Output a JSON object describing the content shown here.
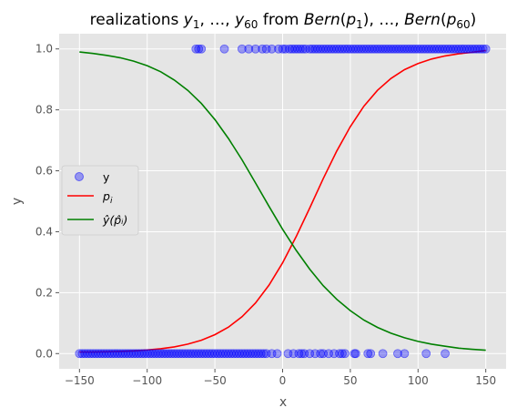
{
  "chart_data": {
    "type": "scatter",
    "title_parts": {
      "prefix": "realizations ",
      "y1_base": "y",
      "y1_sub": "1",
      "sep1": ", …, ",
      "y60_base": "y",
      "y60_sub": "60",
      "middle": " from ",
      "b1_base": "Bern",
      "b1_arg": "p",
      "b1_sub": "1",
      "sep2": ", …, ",
      "b60_base": "Bern",
      "b60_arg": "p",
      "b60_sub": "60"
    },
    "xlabel": "x",
    "ylabel": "y",
    "xlim": [
      -165,
      165
    ],
    "ylim": [
      -0.05,
      1.05
    ],
    "xticks": [
      -150,
      -100,
      -50,
      0,
      50,
      100,
      150
    ],
    "xtick_labels": [
      "−150",
      "−100",
      "−50",
      "0",
      "50",
      "100",
      "150"
    ],
    "yticks": [
      0.0,
      0.2,
      0.4,
      0.6,
      0.8,
      1.0
    ],
    "ytick_labels": [
      "0.0",
      "0.2",
      "0.4",
      "0.6",
      "0.8",
      "1.0"
    ],
    "grid": true,
    "legend_position": "center-left",
    "legend": {
      "scatter_label": "y",
      "p_label_base": "p",
      "p_label_sub": "i",
      "yhat_label": "ŷ(p̂ᵢ)"
    },
    "series": [
      {
        "name": "y",
        "kind": "scatter",
        "color": "#0000ff",
        "points_y1": [
          -64,
          -62,
          -60,
          -43,
          -30,
          -25,
          -20,
          -15,
          -12,
          -8,
          -3,
          0,
          2,
          5,
          7,
          9,
          11,
          13,
          15,
          17,
          20,
          22,
          24,
          26,
          28,
          30,
          32,
          34,
          36,
          38,
          40,
          42,
          44,
          46,
          48,
          50,
          52,
          54,
          56,
          58,
          60,
          62,
          64,
          66,
          68,
          70,
          72,
          74,
          76,
          78,
          80,
          82,
          84,
          86,
          88,
          90,
          92,
          94,
          96,
          98,
          100,
          102,
          104,
          106,
          108,
          110,
          112,
          114,
          116,
          118,
          120,
          122,
          124,
          126,
          128,
          130,
          132,
          134,
          136,
          138,
          140,
          142,
          144,
          146,
          148,
          150
        ],
        "points_y0": [
          -150,
          -148,
          -146,
          -144,
          -142,
          -140,
          -138,
          -136,
          -134,
          -132,
          -130,
          -128,
          -126,
          -124,
          -122,
          -120,
          -118,
          -116,
          -114,
          -112,
          -110,
          -108,
          -106,
          -104,
          -102,
          -100,
          -98,
          -96,
          -94,
          -92,
          -90,
          -88,
          -86,
          -84,
          -82,
          -80,
          -78,
          -76,
          -74,
          -72,
          -70,
          -68,
          -66,
          -64,
          -62,
          -60,
          -58,
          -56,
          -54,
          -52,
          -50,
          -48,
          -46,
          -44,
          -42,
          -40,
          -38,
          -36,
          -34,
          -32,
          -30,
          -28,
          -26,
          -24,
          -22,
          -20,
          -18,
          -16,
          -14,
          -12,
          -8,
          -4,
          4,
          8,
          12,
          14,
          16,
          20,
          24,
          28,
          30,
          34,
          38,
          42,
          44,
          46,
          53,
          54,
          63,
          65,
          74,
          85,
          90,
          106,
          120
        ]
      },
      {
        "name": "p_i",
        "kind": "line",
        "color": "#ff0000",
        "x": [
          -150,
          -140,
          -130,
          -120,
          -110,
          -100,
          -90,
          -80,
          -70,
          -60,
          -50,
          -40,
          -30,
          -20,
          -10,
          0,
          10,
          20,
          30,
          40,
          50,
          60,
          70,
          80,
          90,
          100,
          110,
          120,
          130,
          140,
          150
        ],
        "y": [
          0.005,
          0.005,
          0.006,
          0.007,
          0.009,
          0.012,
          0.016,
          0.022,
          0.031,
          0.044,
          0.062,
          0.087,
          0.121,
          0.166,
          0.225,
          0.298,
          0.384,
          0.478,
          0.574,
          0.665,
          0.745,
          0.812,
          0.864,
          0.903,
          0.932,
          0.952,
          0.967,
          0.977,
          0.984,
          0.989,
          0.995
        ]
      },
      {
        "name": "y_hat",
        "kind": "line",
        "color": "#008000",
        "x": [
          -150,
          -140,
          -130,
          -120,
          -110,
          -100,
          -90,
          -80,
          -70,
          -60,
          -50,
          -40,
          -30,
          -20,
          -10,
          0,
          10,
          20,
          30,
          40,
          50,
          60,
          70,
          80,
          90,
          100,
          110,
          120,
          130,
          140,
          150
        ],
        "y": [
          0.99,
          0.985,
          0.979,
          0.971,
          0.96,
          0.945,
          0.925,
          0.898,
          0.864,
          0.821,
          0.768,
          0.706,
          0.636,
          0.56,
          0.483,
          0.408,
          0.339,
          0.277,
          0.223,
          0.178,
          0.141,
          0.11,
          0.086,
          0.067,
          0.052,
          0.04,
          0.031,
          0.024,
          0.018,
          0.014,
          0.011
        ]
      }
    ]
  }
}
